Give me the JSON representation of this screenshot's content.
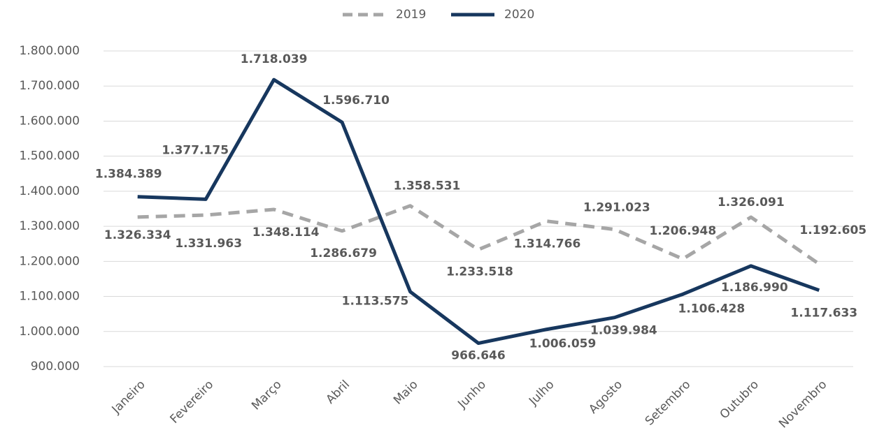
{
  "chart_data": {
    "type": "line",
    "categories": [
      "Janeiro",
      "Fevereiro",
      "Março",
      "Abril",
      "Maio",
      "Junho",
      "Julho",
      "Agosto",
      "Setembro",
      "Outubro",
      "Novembro"
    ],
    "series": [
      {
        "name": "2019",
        "color": "#a6a6a6",
        "dashed": true,
        "values": [
          1326334,
          1331963,
          1348114,
          1286679,
          1358531,
          1233518,
          1314766,
          1291023,
          1206948,
          1326091,
          1192605
        ],
        "value_labels": [
          "1.326.334",
          "1.331.963",
          "1.348.114",
          "1.286.679",
          "1.358.531",
          "1.233.518",
          "1.314.766",
          "1.291.023",
          "1.206.948",
          "1.326.091",
          "1.192.605"
        ]
      },
      {
        "name": "2020",
        "color": "#17375e",
        "dashed": false,
        "values": [
          1384389,
          1377175,
          1718039,
          1596710,
          1113575,
          966646,
          1006059,
          1039984,
          1106428,
          1186990,
          1117633
        ],
        "value_labels": [
          "1.384.389",
          "1.377.175",
          "1.718.039",
          "1.596.710",
          "1.113.575",
          "966.646",
          "1.006.059",
          "1.039.984",
          "1.106.428",
          "1.186.990",
          "1.117.633"
        ]
      }
    ],
    "ylim": [
      900000,
      1800000
    ],
    "yticks": [
      {
        "value": 900000,
        "label": "900.000"
      },
      {
        "value": 1000000,
        "label": "1.000.000"
      },
      {
        "value": 1100000,
        "label": "1.100.000"
      },
      {
        "value": 1200000,
        "label": "1.200.000"
      },
      {
        "value": 1300000,
        "label": "1.300.000"
      },
      {
        "value": 1400000,
        "label": "1.400.000"
      },
      {
        "value": 1500000,
        "label": "1.500.000"
      },
      {
        "value": 1600000,
        "label": "1.600.000"
      },
      {
        "value": 1700000,
        "label": "1.700.000"
      },
      {
        "value": 1800000,
        "label": "1.800.000"
      }
    ],
    "grid": true,
    "legend": "top"
  }
}
